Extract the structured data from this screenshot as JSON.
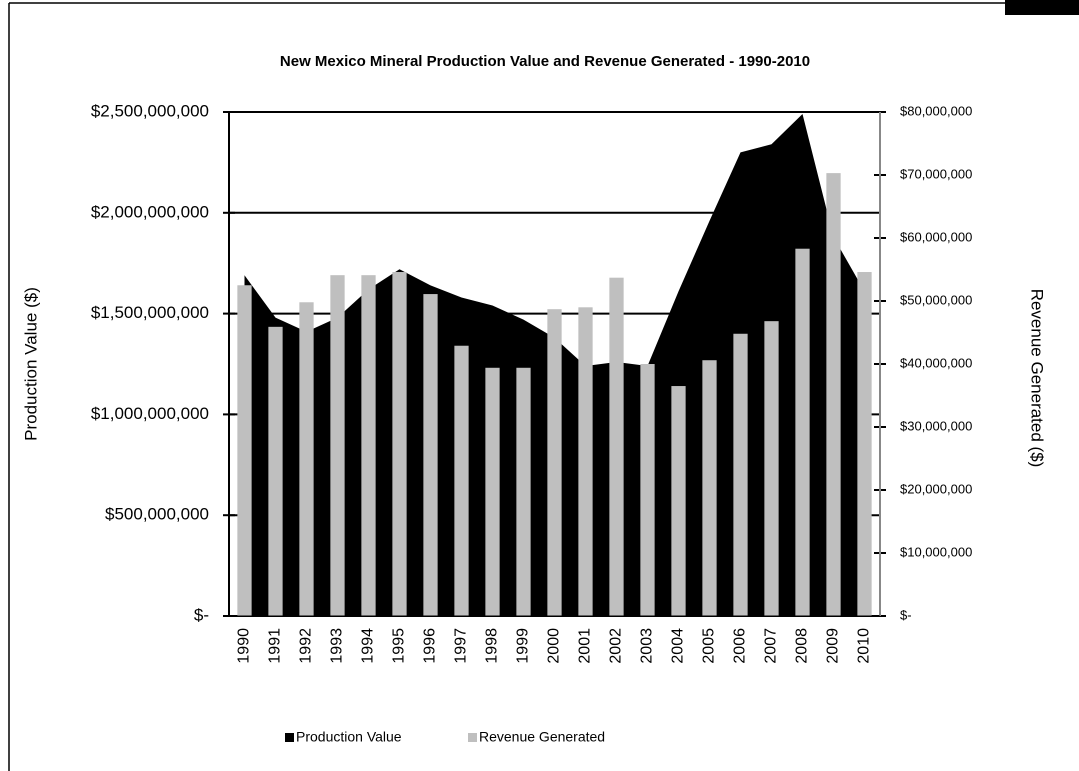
{
  "chart_data": {
    "type": "combo",
    "title": "New Mexico Mineral Production Value and Revenue Generated - 1990-2010",
    "y_label": "Production Value ($)",
    "y2_label": "Revenue Generated ($)",
    "categories": [
      "1990",
      "1991",
      "1992",
      "1993",
      "1994",
      "1995",
      "1996",
      "1997",
      "1998",
      "1999",
      "2000",
      "2001",
      "2002",
      "2003",
      "2004",
      "2005",
      "2006",
      "2007",
      "2008",
      "2009",
      "2010"
    ],
    "series": [
      {
        "name": "Production Value",
        "type": "area",
        "color": "#000000",
        "values": [
          1690000000,
          1480000000,
          1410000000,
          1480000000,
          1620000000,
          1720000000,
          1640000000,
          1580000000,
          1540000000,
          1470000000,
          1380000000,
          1240000000,
          1260000000,
          1240000000,
          1610000000,
          1960000000,
          2300000000,
          2340000000,
          2490000000,
          1880000000,
          1610000000
        ]
      },
      {
        "name": "Revenue Generated",
        "type": "bar",
        "color": "#bfbfbf",
        "axis": "y2",
        "values": [
          52500000,
          45900000,
          49800000,
          54100000,
          54100000,
          54600000,
          51100000,
          42900000,
          39400000,
          39400000,
          48700000,
          49000000,
          53700000,
          40000000,
          36500000,
          40600000,
          44800000,
          46800000,
          58300000,
          70300000,
          54600000
        ]
      }
    ],
    "ylim": [
      0,
      2500000000
    ],
    "yticks": [
      {
        "value": 0,
        "label": "$-"
      },
      {
        "value": 500000000,
        "label": "$500,000,000"
      },
      {
        "value": 1000000000,
        "label": "$1,000,000,000"
      },
      {
        "value": 1500000000,
        "label": "$1,500,000,000"
      },
      {
        "value": 2000000000,
        "label": "$2,000,000,000"
      },
      {
        "value": 2500000000,
        "label": "$2,500,000,000"
      }
    ],
    "y2lim": [
      0,
      80000000
    ],
    "y2ticks": [
      {
        "value": 0,
        "label": "$-"
      },
      {
        "value": 10000000,
        "label": "$10,000,000"
      },
      {
        "value": 20000000,
        "label": "$20,000,000"
      },
      {
        "value": 30000000,
        "label": "$30,000,000"
      },
      {
        "value": 40000000,
        "label": "$40,000,000"
      },
      {
        "value": 50000000,
        "label": "$50,000,000"
      },
      {
        "value": 60000000,
        "label": "$60,000,000"
      },
      {
        "value": 70000000,
        "label": "$70,000,000"
      },
      {
        "value": 80000000,
        "label": "$80,000,000"
      }
    ],
    "grid": true,
    "legend": "bottom"
  }
}
